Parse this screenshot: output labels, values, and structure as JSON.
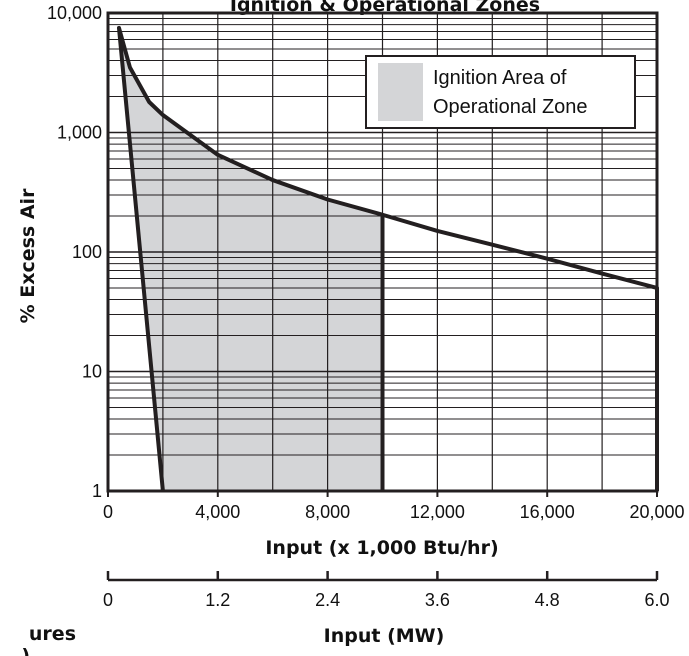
{
  "chart_data": {
    "type": "area",
    "title": "Ignition & Operational Zones",
    "xlabel": "Input (x 1,000 Btu/hr)",
    "ylabel": "% Excess Air",
    "x_secondary_label": "Input (MW)",
    "x_secondary_ticks": [
      "0",
      "1.2",
      "2.4",
      "3.6",
      "4.8",
      "6.0"
    ],
    "y_scale": "log",
    "ylim": [
      1,
      10000
    ],
    "xlim": [
      0,
      20000
    ],
    "xticks": [
      "0",
      "4,000",
      "8,000",
      "12,000",
      "16,000",
      "20,000"
    ],
    "yticks": [
      "1",
      "10",
      "100",
      "1,000",
      "10,000"
    ],
    "grid": true,
    "legend_position": "top-right",
    "legend": [
      {
        "label_line1": "Ignition Area of",
        "label_line2": "Operational Zone",
        "color": "#d4d5d7"
      }
    ],
    "series": [
      {
        "name": "Ignition Area of Operational Zone",
        "role": "filled-region",
        "x": [
          400,
          800,
          1500,
          2000,
          4000,
          6000,
          8000,
          10000,
          10000,
          2000,
          400
        ],
        "y": [
          7500,
          3500,
          1800,
          1400,
          650,
          400,
          275,
          205,
          1,
          1,
          7500
        ]
      },
      {
        "name": "operational-boundary",
        "role": "outline",
        "x": [
          2000,
          400,
          800,
          1500,
          2000,
          4000,
          6000,
          8000,
          10000,
          12000,
          14000,
          16000,
          18000,
          20000,
          20000,
          20000
        ],
        "y": [
          1,
          7500,
          3500,
          1800,
          1400,
          650,
          400,
          275,
          205,
          150,
          115,
          88,
          66,
          50,
          50,
          1
        ]
      }
    ],
    "colors": {
      "fill": "#d4d5d7",
      "line": "#231f20",
      "grid": "#231f20"
    }
  },
  "fragment_text": {
    "left_1": "ures",
    "left_2": ")"
  }
}
